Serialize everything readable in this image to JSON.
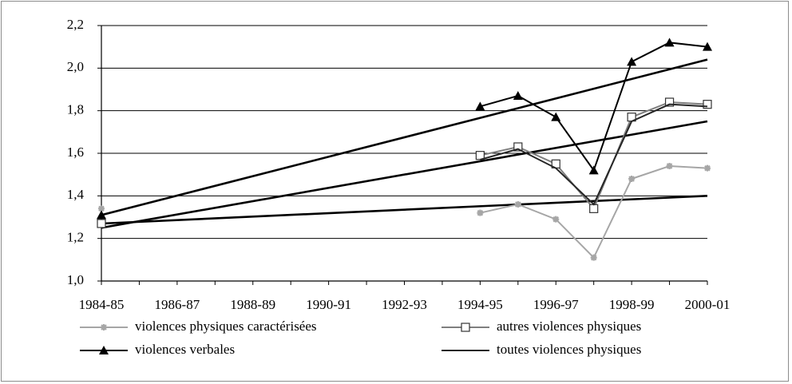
{
  "chart_data": {
    "type": "line",
    "categories": [
      "1984-85",
      null,
      "1986-87",
      null,
      "1988-89",
      null,
      "1990-91",
      null,
      "1992-93",
      null,
      "1994-95",
      null,
      "1996-97",
      null,
      "1998-99",
      null,
      "2000-01"
    ],
    "series": [
      {
        "name": "violences physiques caractérisées",
        "color": "#a6a6a6",
        "marker": "asterisk",
        "values": [
          1.34,
          null,
          null,
          null,
          null,
          null,
          null,
          null,
          null,
          null,
          1.32,
          1.36,
          1.29,
          1.11,
          1.48,
          1.54,
          1.53
        ]
      },
      {
        "name": "autres violences physiques",
        "color": "#7f7f7f",
        "marker": "square",
        "values": [
          1.27,
          null,
          null,
          null,
          null,
          null,
          null,
          null,
          null,
          null,
          1.59,
          1.63,
          1.55,
          1.34,
          1.77,
          1.84,
          1.83
        ]
      },
      {
        "name": "violences verbales",
        "color": "#000000",
        "marker": "triangle",
        "values": [
          1.31,
          null,
          null,
          null,
          null,
          null,
          null,
          null,
          null,
          null,
          1.82,
          1.87,
          1.77,
          1.52,
          2.03,
          2.12,
          2.1
        ]
      },
      {
        "name": "toutes violences physiques",
        "color": "#262626",
        "marker": "none",
        "values": [
          1.27,
          null,
          null,
          null,
          null,
          null,
          null,
          null,
          null,
          null,
          1.57,
          1.62,
          1.53,
          1.36,
          1.75,
          1.83,
          1.82
        ]
      }
    ],
    "trendlines": [
      {
        "color": "#000000",
        "values": [
          1.31,
          2.04
        ]
      },
      {
        "color": "#000000",
        "values": [
          1.25,
          1.75
        ]
      },
      {
        "color": "#000000",
        "values": [
          1.27,
          1.4
        ]
      }
    ],
    "ylim": [
      1.0,
      2.2
    ],
    "yticks": [
      {
        "value": 1.0,
        "label": "1,0"
      },
      {
        "value": 1.2,
        "label": "1,2"
      },
      {
        "value": 1.4,
        "label": "1,4"
      },
      {
        "value": 1.6,
        "label": "1,6"
      },
      {
        "value": 1.8,
        "label": "1,8"
      },
      {
        "value": 2.0,
        "label": "2,0"
      },
      {
        "value": 2.2,
        "label": "2,2"
      }
    ],
    "grid": true
  }
}
